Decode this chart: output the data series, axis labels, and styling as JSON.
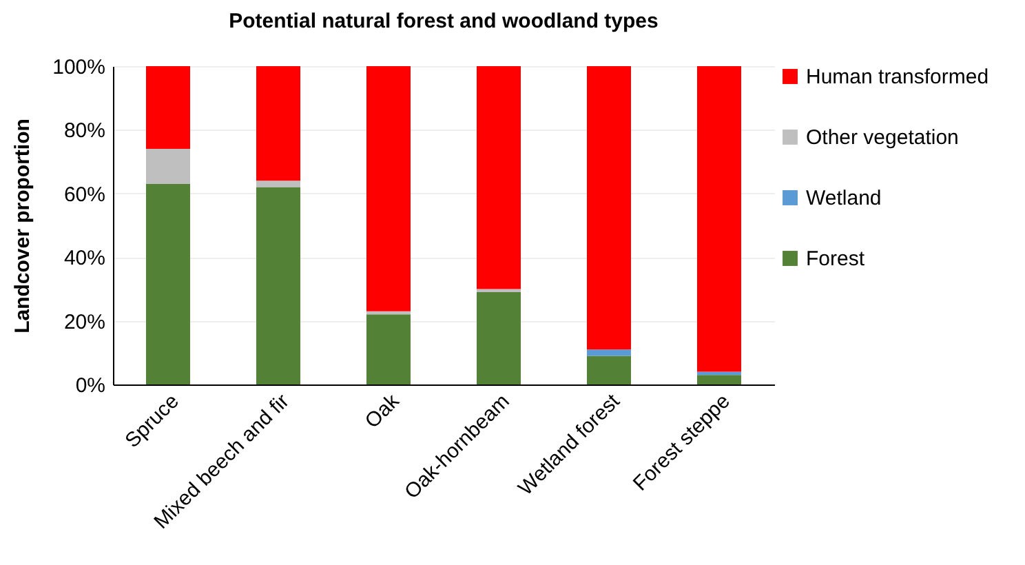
{
  "chart_data": {
    "type": "bar",
    "title": "Potential natural forest and woodland types",
    "ylabel": "Landcover proportion",
    "categories": [
      "Spruce",
      "Mixed beech and fir",
      "Oak",
      "Oak-hornbeam",
      "Wetland forest",
      "Forest steppe"
    ],
    "stacked": true,
    "ylim": [
      0,
      100
    ],
    "yticks": [
      {
        "value": 0,
        "label": "0%"
      },
      {
        "value": 20,
        "label": "20%"
      },
      {
        "value": 40,
        "label": "40%"
      },
      {
        "value": 60,
        "label": "60%"
      },
      {
        "value": 80,
        "label": "80%"
      },
      {
        "value": 100,
        "label": "100%"
      }
    ],
    "grid": "y",
    "legend": "right",
    "series": [
      {
        "name": "Forest",
        "color": "#538135",
        "values": [
          63,
          62,
          22,
          29,
          9,
          3
        ]
      },
      {
        "name": "Wetland",
        "color": "#5b9bd5",
        "values": [
          0,
          0,
          0,
          0,
          2,
          1
        ]
      },
      {
        "name": "Other vegetation",
        "color": "#bfbfbf",
        "values": [
          11,
          2,
          1,
          1,
          0,
          0
        ]
      },
      {
        "name": "Human transformed",
        "color": "#ff0000",
        "values": [
          26,
          36,
          77,
          70,
          89,
          96
        ]
      }
    ]
  }
}
